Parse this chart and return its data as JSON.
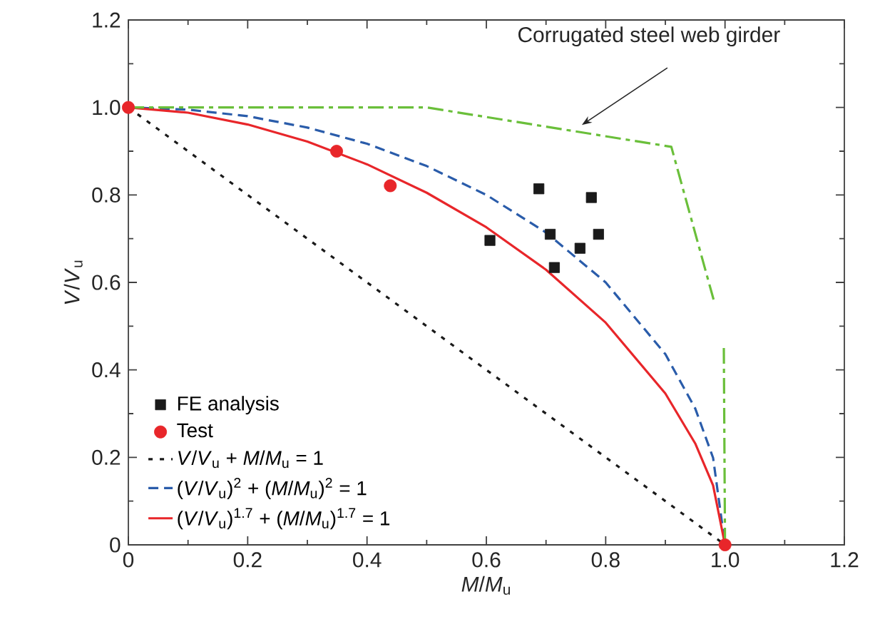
{
  "chart_data": {
    "type": "line",
    "xlabel": "*M*/*M*$_{u}$",
    "ylabel": "*V*/*V*$_{u}$",
    "xlim": [
      0,
      1.2
    ],
    "ylim": [
      0,
      1.2
    ],
    "xticks": [
      0,
      0.2,
      0.4,
      0.6,
      0.8,
      {
        "value": 1,
        "label": "1.0"
      },
      1.2
    ],
    "yticks": [
      0,
      0.2,
      0.4,
      0.6,
      0.8,
      {
        "value": 1,
        "label": "1.0"
      },
      1.2
    ],
    "legend": "bottom left",
    "annotations": [
      {
        "text": "Corrugated steel web girder",
        "x": 0.76,
        "y": 0.96
      }
    ],
    "series": [
      {
        "name": "FE analysis",
        "type": "scatter",
        "color": "#1a1a1a",
        "marker": "square",
        "x": [
          0.606,
          0.688,
          0.707,
          0.714,
          0.757,
          0.776,
          0.788
        ],
        "values": [
          0.696,
          0.814,
          0.71,
          0.634,
          0.678,
          0.794,
          0.71
        ]
      },
      {
        "name": "Test",
        "type": "scatter",
        "color": "#e8262a",
        "marker": "circle",
        "x": [
          0,
          0.349,
          0.439,
          1
        ],
        "values": [
          1,
          0.9,
          0.821,
          0
        ]
      },
      {
        "name": "*V*/*V*$_{u}$ + *M*/*M*$_{u}$ = 1",
        "color": "#1a1a1a",
        "line_style": "dotted",
        "x": [
          0,
          0.5,
          1
        ],
        "values": [
          1,
          0.5,
          0
        ]
      },
      {
        "name": "(*V*/*V*$_{u}$)$^{2}$ + (*M*/*M*$_{u}$)$^{2}$ = 1",
        "color": "#2a5caa",
        "line_style": "dashed",
        "x": [
          0,
          0.1,
          0.2,
          0.3,
          0.4,
          0.5,
          0.6,
          0.7,
          0.8,
          0.9,
          0.95,
          0.98,
          1
        ],
        "values": [
          1,
          0.995,
          0.98,
          0.954,
          0.917,
          0.866,
          0.8,
          0.714,
          0.6,
          0.436,
          0.312,
          0.199,
          0
        ]
      },
      {
        "name": "(*V*/*V*$_{u}$)$^{1.7}$ + (*M*/*M*$_{u}$)$^{1.7}$ = 1",
        "color": "#e8262a",
        "line_style": "solid",
        "x": [
          0,
          0.1,
          0.2,
          0.3,
          0.4,
          0.5,
          0.6,
          0.7,
          0.8,
          0.9,
          0.95,
          0.98,
          1
        ],
        "values": [
          1,
          0.988,
          0.961,
          0.922,
          0.87,
          0.805,
          0.726,
          0.629,
          0.508,
          0.346,
          0.232,
          0.136,
          0
        ]
      },
      {
        "color": "#6abf3a",
        "line_style": "dashdot",
        "x": [
          0,
          0.5,
          0.91,
          0.983,
          0.99,
          0.998,
          1
        ],
        "values": [
          1,
          1,
          0.91,
          0.55,
          null,
          0.45,
          0
        ]
      }
    ]
  }
}
